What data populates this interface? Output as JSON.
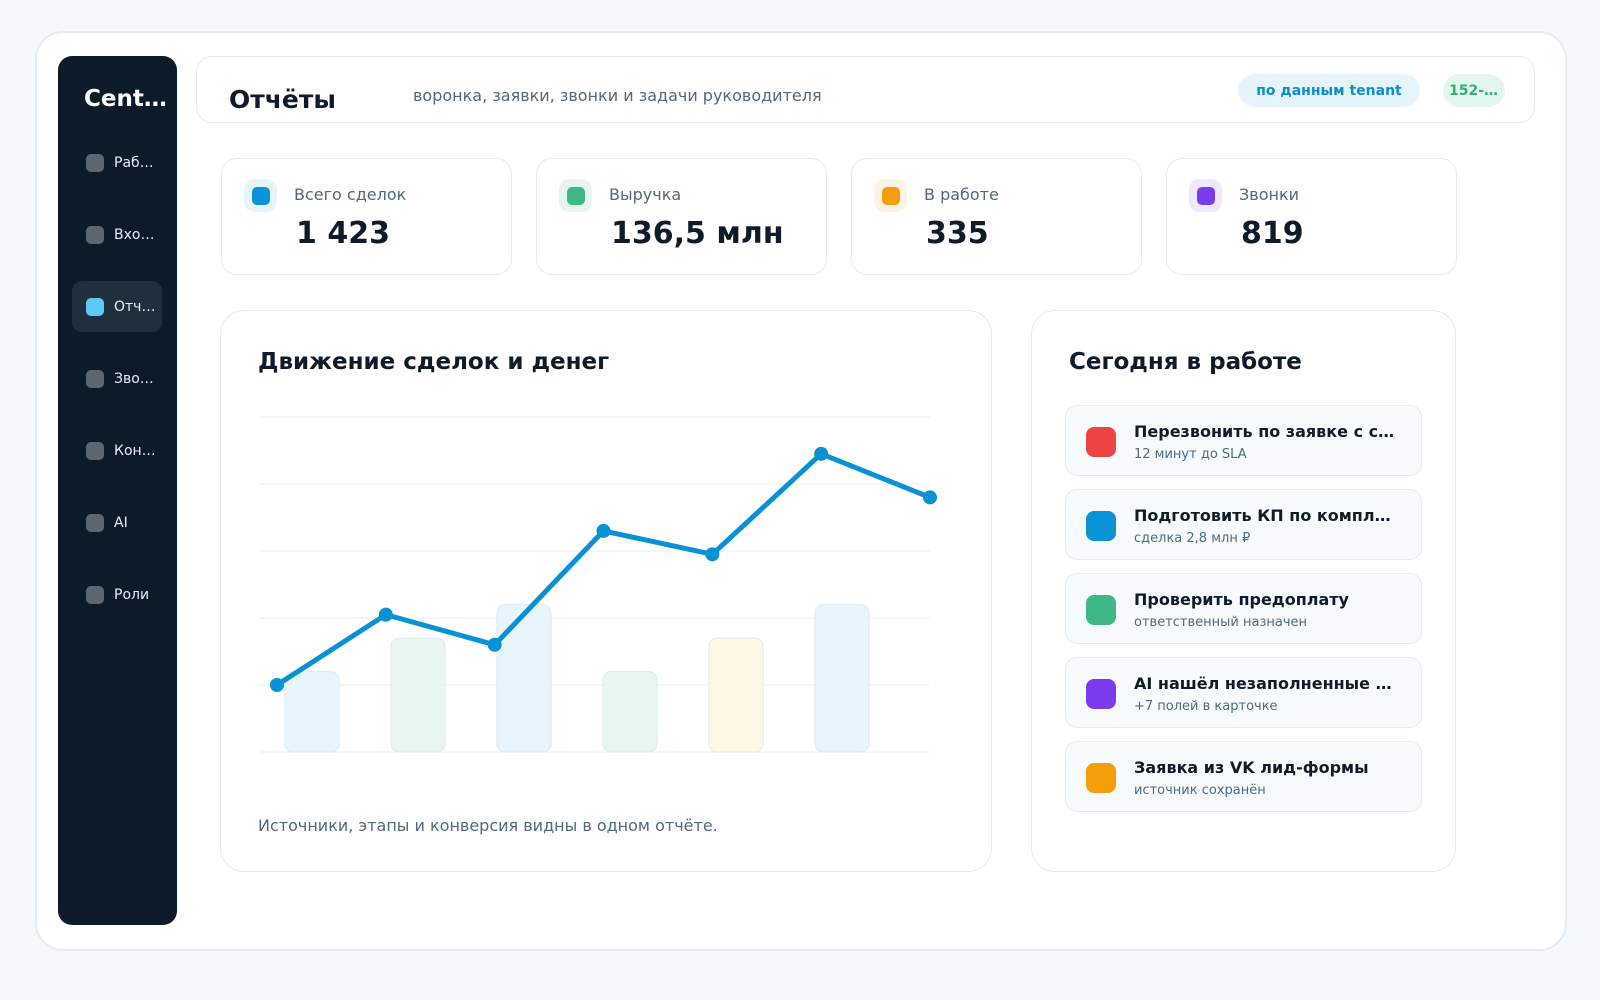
{
  "app": {
    "brand": "CentrAI"
  },
  "sidebar": {
    "items": [
      {
        "label": "Работа",
        "active": false
      },
      {
        "label": "Входящие",
        "active": false
      },
      {
        "label": "Отчёты",
        "active": true
      },
      {
        "label": "Звонки",
        "active": false
      },
      {
        "label": "Контент",
        "active": false
      },
      {
        "label": "AI",
        "active": false
      },
      {
        "label": "Роли",
        "active": false
      }
    ]
  },
  "header": {
    "title": "Отчёты",
    "subtitle": "воронка, заявки, звонки и задачи руководителя",
    "tenant_pill": "по данным tenant",
    "phone_pill": "152-..."
  },
  "kpis": [
    {
      "label": "Всего сделок",
      "value": "1 423",
      "color": "#0a93d6",
      "bg": "#e6f4fb"
    },
    {
      "label": "Выручка",
      "value": "136,5 млн",
      "color": "#3db886",
      "bg": "#e6f6ee"
    },
    {
      "label": "В работе",
      "value": "335",
      "color": "#f59e0b",
      "bg": "#fdf3e2"
    },
    {
      "label": "Звонки",
      "value": "819",
      "color": "#7c3aed",
      "bg": "#f0e9fd"
    }
  ],
  "chart": {
    "title": "Движение сделок и денег",
    "footer": "Источники, этапы и конверсия видны в одном отчёте."
  },
  "chart_data": {
    "type": "line",
    "title": "Движение сделок и денег",
    "xlabel": "",
    "ylabel": "",
    "ylim": [
      0,
      5
    ],
    "grid": true,
    "line": {
      "name": "",
      "values": [
        1.0,
        2.05,
        1.6,
        3.3,
        2.95,
        4.45,
        3.8
      ],
      "color": "#0891d4"
    },
    "bars": {
      "values": [
        1.2,
        1.7,
        2.2,
        1.2,
        1.7,
        2.2
      ],
      "colors": [
        "#e8f5fc",
        "#e8f6ef",
        "#e8f5fc",
        "#e8f6ef",
        "#fff8e6",
        "#e8f5fc"
      ]
    }
  },
  "tasks": {
    "title": "Сегодня в работе",
    "items": [
      {
        "title": "Перезвонить по заявке с сайта",
        "sub": "12 минут до SLA",
        "color": "#ef4444"
      },
      {
        "title": "Подготовить КП по комплекту",
        "sub": "сделка 2,8 млн ₽",
        "color": "#0a93d6"
      },
      {
        "title": "Проверить предоплату",
        "sub": "ответственный назначен",
        "color": "#3db886"
      },
      {
        "title": "AI нашёл незаполненные поля",
        "sub": "+7 полей в карточке",
        "color": "#7c3aed"
      },
      {
        "title": "Заявка из VK лид-формы",
        "sub": "источник сохранён",
        "color": "#f59e0b"
      }
    ]
  }
}
